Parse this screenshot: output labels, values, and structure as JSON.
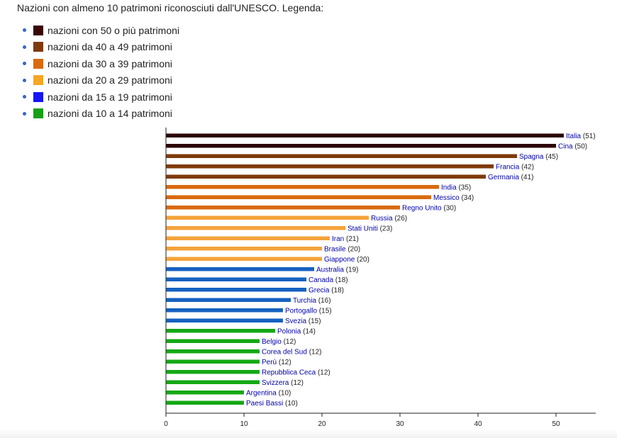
{
  "intro": "Nazioni con almeno 10 patrimoni riconosciuti dall'UNESCO. Legenda:",
  "legend": [
    {
      "label": "nazioni con 50 o più patrimoni",
      "color": "#3a0606"
    },
    {
      "label": "nazioni da 40 a 49 patrimoni",
      "color": "#7f3a0a"
    },
    {
      "label": "nazioni da 30 a 39 patrimoni",
      "color": "#d96a0e"
    },
    {
      "label": "nazioni da 20 a 29 patrimoni",
      "color": "#f5a623"
    },
    {
      "label": "nazioni da 15 a 19 patrimoni",
      "color": "#1515f5"
    },
    {
      "label": "nazioni da 10 a 14 patrimoni",
      "color": "#17a017"
    }
  ],
  "chart_data": {
    "type": "bar",
    "orientation": "horizontal",
    "categories": [
      "Italia",
      "Cina",
      "Spagna",
      "Francia",
      "Germania",
      "India",
      "Messico",
      "Regno Unito",
      "Russia",
      "Stati Uniti",
      "Iran",
      "Brasile",
      "Giappone",
      "Australia",
      "Canada",
      "Grecia",
      "Turchia",
      "Portogallo",
      "Svezia",
      "Polonia",
      "Belgio",
      "Corea del Sud",
      "Perù",
      "Repubblica Ceca",
      "Svizzera",
      "Argentina",
      "Paesi Bassi"
    ],
    "values": [
      51,
      50,
      45,
      42,
      41,
      35,
      34,
      30,
      26,
      23,
      21,
      20,
      20,
      19,
      18,
      18,
      16,
      15,
      15,
      14,
      12,
      12,
      12,
      12,
      12,
      10,
      10
    ],
    "value_labels": [
      "(51)",
      "(50)",
      "(45)",
      "(42)",
      "(41)",
      "(35)",
      "(34)",
      "(30)",
      "(26)",
      "(23)",
      "(21)",
      "(20)",
      "(20)",
      "(19)",
      "(18)",
      "(18)",
      "(16)",
      "(15)",
      "(15)",
      "(14)",
      "(12)",
      "(12)",
      "(12)",
      "(12)",
      "(12)",
      "(10)",
      "(10)"
    ],
    "bar_colors": [
      "#2b0404",
      "#2b0404",
      "#7f3a0a",
      "#7f3a0a",
      "#7f3a0a",
      "#d96a0e",
      "#d96a0e",
      "#d96a0e",
      "#f5a33a",
      "#f5a33a",
      "#f5a33a",
      "#f5a33a",
      "#f5a33a",
      "#1561c0",
      "#1561c0",
      "#1561c0",
      "#1561c0",
      "#1561c0",
      "#1561c0",
      "#14a814",
      "#14a814",
      "#14a814",
      "#14a814",
      "#14a814",
      "#14a814",
      "#14a814",
      "#14a814"
    ],
    "name_color": "#0000aa",
    "value_color": "#222222",
    "xticks": [
      "0",
      "10",
      "20",
      "30",
      "40",
      "50"
    ],
    "xlim": [
      0,
      55
    ],
    "title": "",
    "xlabel": "",
    "ylabel": "",
    "grid": false
  }
}
